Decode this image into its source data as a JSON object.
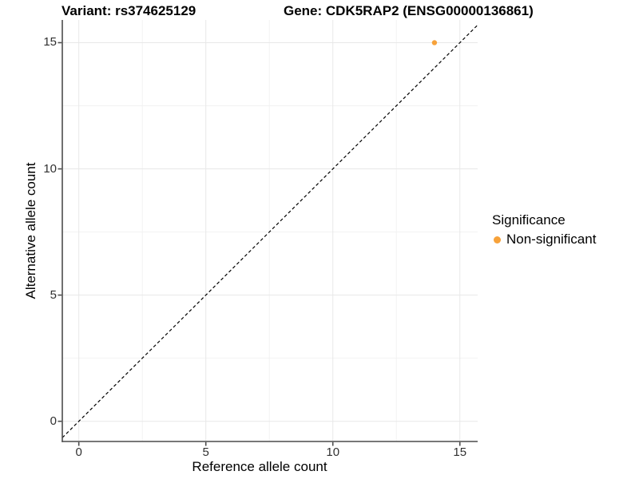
{
  "titles": {
    "left": "Variant: rs374625129",
    "right": "Gene: CDK5RAP2 (ENSG00000136861)"
  },
  "chart_data": {
    "type": "scatter",
    "title": "Variant: rs374625129   Gene: CDK5RAP2 (ENSG00000136861)",
    "xlabel": "Reference allele count",
    "ylabel": "Alternative allele count",
    "xlim": [
      -0.65,
      15.7
    ],
    "ylim": [
      -0.8,
      15.9
    ],
    "x_ticks": [
      0,
      5,
      10,
      15
    ],
    "y_ticks": [
      0,
      5,
      10,
      15
    ],
    "x_minor_gridlines": [
      2.5,
      7.5,
      12.5
    ],
    "y_minor_gridlines": [
      2.5,
      7.5,
      12.5
    ],
    "grid": "major and minor, light gray on white",
    "legend_position": "right",
    "series": [
      {
        "name": "Non-significant",
        "color": "#F7A23A",
        "points": [
          {
            "x": 14,
            "y": 15
          }
        ]
      }
    ],
    "reference_line": {
      "kind": "identity y=x",
      "style": "dashed",
      "color": "#000000"
    }
  },
  "legend": {
    "title": "Significance",
    "entries": [
      {
        "label": "Non-significant",
        "color": "#F7A23A"
      }
    ]
  },
  "colors": {
    "grid_major": "#e8e8e8",
    "grid_minor": "#f2f2f2",
    "axis_line": "#4c4c4c",
    "tick_mark": "#4c4c4c",
    "tick_text": "#303030",
    "point": "#F7A23A",
    "dashed_line": "#000000",
    "background": "#ffffff"
  }
}
